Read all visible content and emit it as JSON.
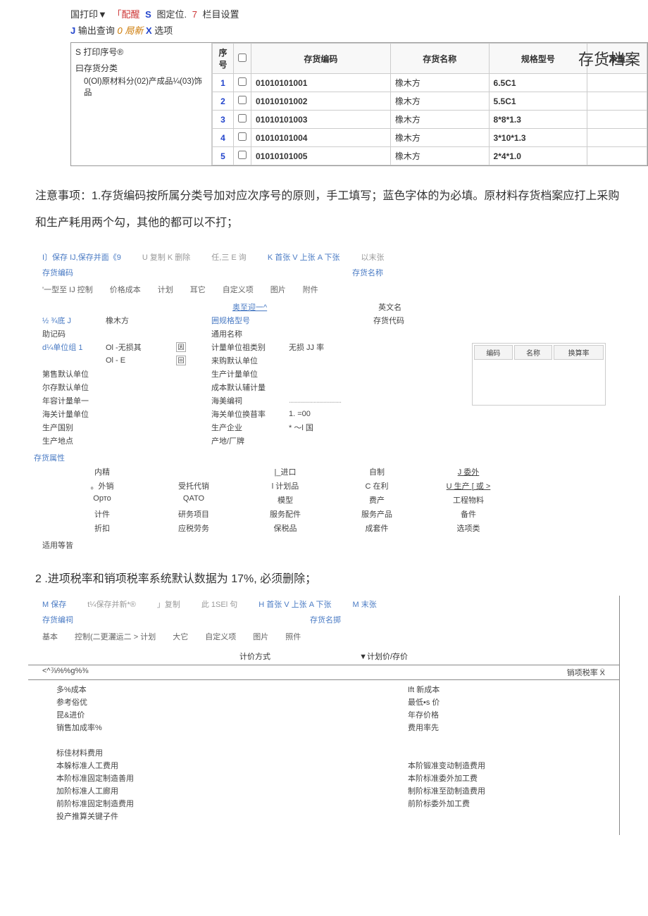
{
  "top_toolbar": {
    "row1": [
      "国打印▼",
      "「配醒",
      "S",
      "图定位.",
      "7",
      "栏目设置"
    ],
    "row2": [
      "J",
      "输出查询",
      "0 局新",
      "X",
      "选项"
    ]
  },
  "archive": {
    "title": "存货档案",
    "seq_title": "S 打印序号®",
    "cat_title": "曰存货分类",
    "cat_items": "0(Ol)原材料分(02)产成品¼(03)饰品",
    "headers": [
      "序号",
      "",
      "存货编码",
      "存货名称",
      "规格型号",
      "净重"
    ],
    "rows": [
      {
        "idx": "1",
        "code": "01010101001",
        "name": "橡木方",
        "spec": "6.5C1"
      },
      {
        "idx": "2",
        "code": "01010101002",
        "name": "橡木方",
        "spec": "5.5C1"
      },
      {
        "idx": "3",
        "code": "01010101003",
        "name": "橡木方",
        "spec": "8*8*1.3"
      },
      {
        "idx": "4",
        "code": "01010101004",
        "name": "橡木方",
        "spec": "3*10*1.3"
      },
      {
        "idx": "5",
        "code": "01010101005",
        "name": "橡木方",
        "spec": "2*4*1.0"
      }
    ]
  },
  "note1": "注意事项：1.存货编码按所属分类号加对应次序号的原则，手工填写；蓝色字体的为必填。原材料存货档案应打上采购和生产耗用两个勾，其他的都可以不打；",
  "form1": {
    "toolbar": [
      "I〕保存 IJ,保存并面《9",
      "U 复制 K 删除",
      "任,三 E 询",
      "K 首张 V 上张 A 下张",
      "以末张"
    ],
    "code_lbl": "存货编码",
    "name_lbl": "存货名称",
    "tabs": [
      "'一型至 IJ 控制",
      "价格成本",
      "计划",
      "耳它",
      "自定义项",
      "图片",
      "附件"
    ],
    "center_link": "奥至迎一^",
    "eng_name": "英文名",
    "rows": [
      {
        "l1": "½ ¾底 J",
        "l2": "橡木方",
        "l3": "囲规格型号",
        "r1": "存货代码"
      },
      {
        "l1": "助记码",
        "l2": "",
        "l3": "通用名称",
        "r1": ""
      },
      {
        "l1": "d¼单位组 1",
        "l2": "Ol -无损其",
        "box": "因",
        "l3": "计量单位祖类别",
        "mid": "无损 JJ 率"
      },
      {
        "l1": "",
        "l2": "Ol - E",
        "box": "回",
        "l3": "来购默认单位"
      },
      {
        "l1": "第售默认单位",
        "l3": "生产计量单位"
      },
      {
        "l1": "尔存默认单位",
        "l3": "成本默认辅计量"
      },
      {
        "l1": "年容计量单一",
        "l3": "海美编祠",
        "dash": true
      },
      {
        "l1": "海关计量单位",
        "l3": "海关单位换苜率",
        "mid": "1. =00"
      },
      {
        "l1": "生产国别",
        "l3": "生产企业",
        "mid": "*   ～l 国"
      },
      {
        "l1": "生产地点",
        "l3": "产地/厂牌"
      }
    ],
    "mini_headers": [
      "编码",
      "名称",
      "换算率"
    ],
    "attr_label": "存货属性",
    "attributes": [
      [
        "内精",
        "",
        "|_进口",
        "自制",
        "J 委外"
      ],
      [
        "。外销",
        "受托代销",
        "l 计划品",
        "C 在利",
        "U 生产 [ 或 >"
      ],
      [
        "Орто",
        "QATO",
        "模型",
        "费产",
        "工程物料"
      ],
      [
        "计件",
        "研务项目",
        "服务配件",
        "服务产品",
        "备件"
      ],
      [
        "折扣",
        "应税劳务",
        "保税品",
        "成套件",
        "选项类"
      ]
    ],
    "apply": "适用等皆"
  },
  "note2": "2 .进项税率和销项税率系统默认数据为 17%, 必须删除；",
  "form2": {
    "toolbar": [
      "M 保存",
      "t¼保存并新*®",
      "」复制",
      "此 1SEl 句",
      "H 首张 V 上张 A 下张",
      "M 末张"
    ],
    "code_lbl": "存货编祠",
    "name_lbl": "存货名掷",
    "tabs": [
      "基本",
      "控制(二更灑运二 > 计划",
      "大它",
      "自定义项",
      "图片",
      "照件"
    ],
    "plan_title": "计价方式",
    "plan_sub": "▼计划价/存价",
    "bar_left": "<^⅞%%g%⅜",
    "bar_right": "销项税率 X",
    "bar_squiggle": "一 ∩",
    "lines": [
      {
        "l": "多%成本",
        "r": "Ift 新成本"
      },
      {
        "l": "参考俗优",
        "r": "最低•s 价"
      },
      {
        "l": "昆&进价",
        "r": "年存价格"
      },
      {
        "l": "销售加成率%",
        "r": "费用率先"
      }
    ],
    "lines2": [
      {
        "l": "标佳材料费用",
        "r": ""
      },
      {
        "l": "本躲标准人工费用",
        "r": "本阶锻准变动制造费用"
      },
      {
        "l": "本阶标准固定制造善用",
        "r": "本阶标准委外加工费"
      },
      {
        "l": "加阶标准人工廊用",
        "r": "制阶标准至劭制造费用"
      },
      {
        "l": "前阶标准固定制造费用",
        "r": "前阶标委外加工费"
      },
      {
        "l": "投产推算关键子件",
        "r": ""
      }
    ]
  }
}
